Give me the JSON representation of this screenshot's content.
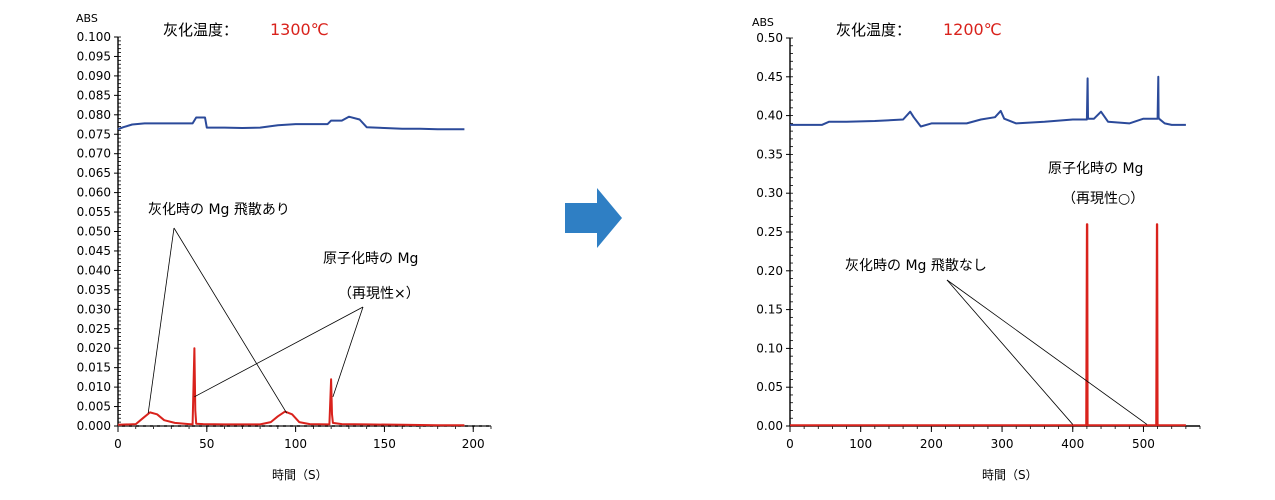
{
  "colors": {
    "blue_series": "#2b4a9a",
    "red_series": "#d9221c",
    "red_text": "#d9221c",
    "arrow": "#2f7fc4",
    "axis": "#000000",
    "dashed_baseline": "#555555"
  },
  "arrow_icon": "right-arrow-icon",
  "chart_data": [
    {
      "type": "line",
      "ylabel": "ABS",
      "xlabel": "時間（S）",
      "ash_temp_label": "灰化温度：",
      "ash_temp_value": "1300℃",
      "xlim": [
        0,
        210
      ],
      "ylim": [
        0,
        0.1
      ],
      "x_ticks": [
        0,
        50,
        100,
        150,
        200
      ],
      "x_tick_labels": [
        "0",
        "50",
        "100",
        "150",
        "200"
      ],
      "y_ticks": [
        0.0,
        0.005,
        0.01,
        0.015,
        0.02,
        0.025,
        0.03,
        0.035,
        0.04,
        0.045,
        0.05,
        0.055,
        0.06,
        0.065,
        0.07,
        0.075,
        0.08,
        0.085,
        0.09,
        0.095,
        0.1
      ],
      "y_tick_labels": [
        "0.000",
        "0.005",
        "0.010",
        "0.015",
        "0.020",
        "0.025",
        "0.030",
        "0.035",
        "0.040",
        "0.045",
        "0.050",
        "0.055",
        "0.060",
        "0.065",
        "0.070",
        "0.075",
        "0.080",
        "0.085",
        "0.090",
        "0.095",
        "0.100"
      ],
      "baseline_dashed": true,
      "series": [
        {
          "color": "blue",
          "x": [
            0,
            3,
            8,
            15,
            25,
            35,
            42,
            44,
            49,
            50,
            60,
            70,
            80,
            90,
            100,
            110,
            115,
            118,
            120,
            126,
            130,
            136,
            140,
            150,
            160,
            170,
            180,
            190,
            195
          ],
          "y": [
            0.0763,
            0.0768,
            0.0775,
            0.0778,
            0.0778,
            0.0778,
            0.0778,
            0.0793,
            0.0793,
            0.0767,
            0.0767,
            0.0766,
            0.0767,
            0.0773,
            0.0776,
            0.0776,
            0.0776,
            0.0776,
            0.0785,
            0.0785,
            0.0795,
            0.0788,
            0.0768,
            0.0766,
            0.0764,
            0.0764,
            0.0763,
            0.0763,
            0.0763
          ]
        },
        {
          "color": "red",
          "x": [
            0,
            10,
            14,
            18,
            22,
            26,
            32,
            40,
            42,
            43,
            43.5,
            44,
            48,
            60,
            80,
            86,
            90,
            94,
            98,
            102,
            108,
            118,
            119,
            120,
            120.5,
            121,
            126,
            140,
            160,
            180,
            195
          ],
          "y": [
            0.0003,
            0.0005,
            0.002,
            0.0035,
            0.003,
            0.0015,
            0.0008,
            0.0005,
            0.0004,
            0.02,
            0.004,
            0.0006,
            0.0005,
            0.0004,
            0.0004,
            0.001,
            0.0025,
            0.0037,
            0.003,
            0.001,
            0.0005,
            0.0004,
            0.0004,
            0.012,
            0.003,
            0.0008,
            0.0005,
            0.0004,
            0.0003,
            0.0002,
            0.0002
          ]
        }
      ],
      "annotations": [
        {
          "text": "灰化時の Mg 飛散あり",
          "points": [
            [
              17,
              0.0033
            ],
            [
              95,
              0.0033
            ]
          ]
        },
        {
          "text": "原子化時の Mg",
          "sub": "（再現性×）",
          "points": [
            [
              43,
              0.0075
            ],
            [
              121,
              0.0075
            ]
          ]
        }
      ]
    },
    {
      "type": "line",
      "ylabel": "ABS",
      "xlabel": "時間（S）",
      "ash_temp_label": "灰化温度：",
      "ash_temp_value": "1200℃",
      "xlim": [
        0,
        580
      ],
      "ylim": [
        0,
        0.5
      ],
      "x_ticks": [
        0,
        100,
        200,
        300,
        400,
        500
      ],
      "x_tick_labels": [
        "0",
        "100",
        "200",
        "300",
        "400",
        "500"
      ],
      "y_ticks": [
        0.0,
        0.05,
        0.1,
        0.15,
        0.2,
        0.25,
        0.3,
        0.35,
        0.4,
        0.45,
        0.5
      ],
      "y_tick_labels": [
        "0.00",
        "0.05",
        "0.10",
        "0.15",
        "0.20",
        "0.25",
        "0.30",
        "0.35",
        "0.40",
        "0.45",
        "0.50"
      ],
      "baseline_dashed": false,
      "series": [
        {
          "color": "blue",
          "x": [
            0,
            45,
            55,
            80,
            120,
            160,
            170,
            175,
            185,
            200,
            250,
            270,
            290,
            298,
            303,
            320,
            360,
            400,
            420,
            421,
            421.5,
            422,
            430,
            440,
            450,
            480,
            500,
            520,
            521,
            521.5,
            522,
            530,
            540,
            550,
            560
          ],
          "y": [
            0.388,
            0.388,
            0.392,
            0.392,
            0.393,
            0.395,
            0.405,
            0.398,
            0.386,
            0.39,
            0.39,
            0.395,
            0.398,
            0.406,
            0.396,
            0.39,
            0.392,
            0.395,
            0.395,
            0.448,
            0.398,
            0.396,
            0.396,
            0.405,
            0.392,
            0.39,
            0.396,
            0.396,
            0.45,
            0.398,
            0.396,
            0.39,
            0.388,
            0.388,
            0.388
          ]
        },
        {
          "color": "red",
          "x": [
            0,
            100,
            200,
            300,
            400,
            419,
            420,
            420.5,
            421,
            422,
            440,
            480,
            518,
            519,
            519.5,
            520,
            521,
            540,
            560
          ],
          "y": [
            0.001,
            0.001,
            0.001,
            0.001,
            0.001,
            0.001,
            0.26,
            0.26,
            0.001,
            0.001,
            0.001,
            0.001,
            0.001,
            0.26,
            0.26,
            0.001,
            0.001,
            0.001,
            0.001
          ]
        }
      ],
      "annotations": [
        {
          "text": "灰化時の Mg 飛散なし",
          "points": [
            [
              400,
              0.002
            ],
            [
              505,
              0.002
            ]
          ]
        },
        {
          "text": "原子化時の Mg",
          "sub": "（再現性○）",
          "points": []
        }
      ]
    }
  ]
}
